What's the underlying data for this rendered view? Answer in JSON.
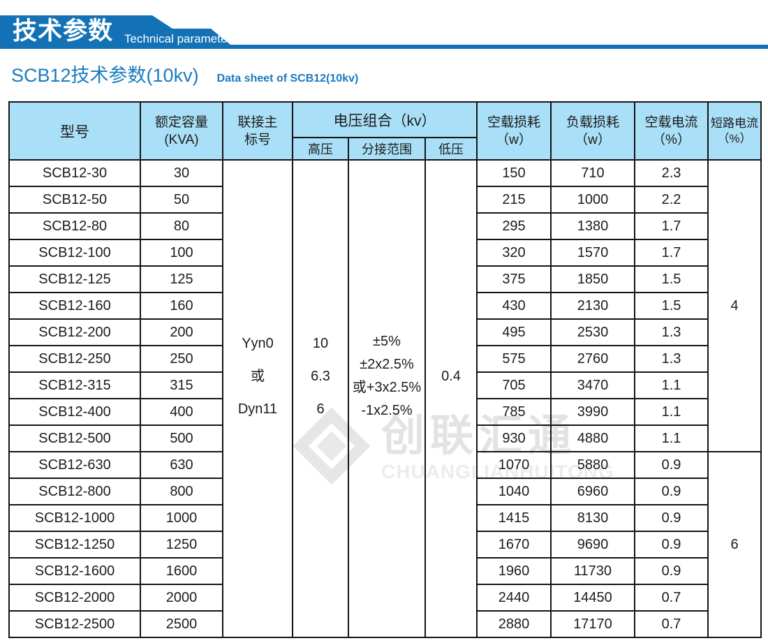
{
  "banner": {
    "title_cn": "技术参数",
    "title_en": "Technical parameter"
  },
  "page_title": {
    "cn": "SCB12技术参数(10kv)",
    "en": "Data sheet of SCB12(10kv)"
  },
  "colors": {
    "banner_blue": "#1272B5",
    "header_bg": "#A9DFF7",
    "title_blue": "#1A7BBF",
    "border_black": "#141414",
    "watermark_gray": "#E3E3E3"
  },
  "watermark": {
    "logo": "diamond-logo",
    "text_cn": "创联汇通",
    "text_en": "CHUANGLIANHUITONG"
  },
  "table": {
    "headers": {
      "model": "型号",
      "capacity_line1": "额定容量",
      "capacity_line2": "(KVA)",
      "vector_line1": "联接主",
      "vector_line2": "标号",
      "voltage_group": "电压组合（kv）",
      "hv": "高压",
      "tap": "分接范围",
      "lv": "低压",
      "no_load_loss_line1": "空载损耗",
      "no_load_loss_line2": "（w）",
      "load_loss_line1": "负载损耗",
      "load_loss_line2": "（w）",
      "no_load_current_line1": "空载电流",
      "no_load_current_line2": "（%）",
      "short_circuit_line1": "短路电流",
      "short_circuit_line2": "（%）"
    },
    "merged": {
      "vector": [
        "Yyn0",
        "或",
        "Dyn11"
      ],
      "hv": [
        "10",
        "6.3",
        "6"
      ],
      "tap": [
        "±5%",
        "±2x2.5%",
        "或+3x2.5%",
        "-1x2.5%"
      ],
      "lv": "0.4",
      "short_circuit_groups": [
        {
          "value": "4",
          "rows": 11
        },
        {
          "value": "6",
          "rows": 7
        }
      ]
    },
    "rows": [
      {
        "model": "SCB12-30",
        "capacity": "30",
        "no_load_loss": "150",
        "load_loss": "710",
        "no_load_current": "2.3"
      },
      {
        "model": "SCB12-50",
        "capacity": "50",
        "no_load_loss": "215",
        "load_loss": "1000",
        "no_load_current": "2.2"
      },
      {
        "model": "SCB12-80",
        "capacity": "80",
        "no_load_loss": "295",
        "load_loss": "1380",
        "no_load_current": "1.7"
      },
      {
        "model": "SCB12-100",
        "capacity": "100",
        "no_load_loss": "320",
        "load_loss": "1570",
        "no_load_current": "1.7"
      },
      {
        "model": "SCB12-125",
        "capacity": "125",
        "no_load_loss": "375",
        "load_loss": "1850",
        "no_load_current": "1.5"
      },
      {
        "model": "SCB12-160",
        "capacity": "160",
        "no_load_loss": "430",
        "load_loss": "2130",
        "no_load_current": "1.5"
      },
      {
        "model": "SCB12-200",
        "capacity": "200",
        "no_load_loss": "495",
        "load_loss": "2530",
        "no_load_current": "1.3"
      },
      {
        "model": "SCB12-250",
        "capacity": "250",
        "no_load_loss": "575",
        "load_loss": "2760",
        "no_load_current": "1.3"
      },
      {
        "model": "SCB12-315",
        "capacity": "315",
        "no_load_loss": "705",
        "load_loss": "3470",
        "no_load_current": "1.1"
      },
      {
        "model": "SCB12-400",
        "capacity": "400",
        "no_load_loss": "785",
        "load_loss": "3990",
        "no_load_current": "1.1"
      },
      {
        "model": "SCB12-500",
        "capacity": "500",
        "no_load_loss": "930",
        "load_loss": "4880",
        "no_load_current": "1.1"
      },
      {
        "model": "SCB12-630",
        "capacity": "630",
        "no_load_loss": "1070",
        "load_loss": "5880",
        "no_load_current": "0.9"
      },
      {
        "model": "SCB12-800",
        "capacity": "800",
        "no_load_loss": "1040",
        "load_loss": "6960",
        "no_load_current": "0.9"
      },
      {
        "model": "SCB12-1000",
        "capacity": "1000",
        "no_load_loss": "1415",
        "load_loss": "8130",
        "no_load_current": "0.9"
      },
      {
        "model": "SCB12-1250",
        "capacity": "1250",
        "no_load_loss": "1670",
        "load_loss": "9690",
        "no_load_current": "0.9"
      },
      {
        "model": "SCB12-1600",
        "capacity": "1600",
        "no_load_loss": "1960",
        "load_loss": "11730",
        "no_load_current": "0.9"
      },
      {
        "model": "SCB12-2000",
        "capacity": "2000",
        "no_load_loss": "2440",
        "load_loss": "14450",
        "no_load_current": "0.7"
      },
      {
        "model": "SCB12-2500",
        "capacity": "2500",
        "no_load_loss": "2880",
        "load_loss": "17170",
        "no_load_current": "0.7"
      }
    ]
  }
}
